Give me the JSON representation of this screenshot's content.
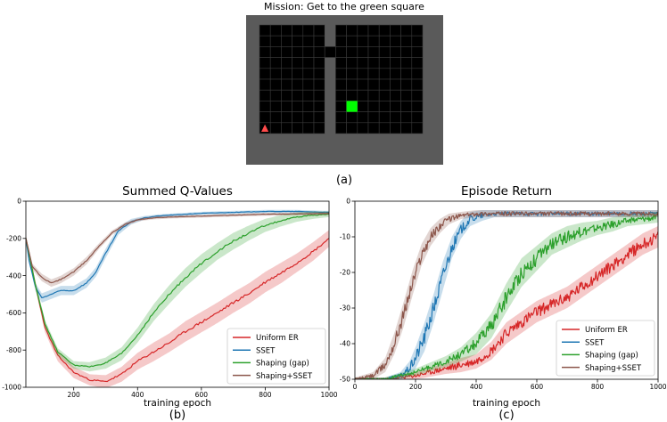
{
  "colors": {
    "uniform_er": "#d62728",
    "sset": "#1f77b4",
    "shaping_gap": "#2ca02c",
    "shaping_sset": "#8c564b",
    "env_border": "#5a5a5a",
    "env_grid_line": "#3a3a3a",
    "env_cell": "#000000",
    "goal": "#00ff00",
    "agent": "#ff4b4b"
  },
  "panel_a": {
    "title": "Mission: Get to the green square",
    "label": "(a)",
    "grid": {
      "cols": 15,
      "rows": 10,
      "wall_column": 6,
      "door_row": 2,
      "goal": {
        "col": 8,
        "row": 7
      },
      "agent": {
        "col": 0,
        "row": 9,
        "facing": "up"
      }
    }
  },
  "chart_data": [
    {
      "type": "line",
      "title": "Summed Q-Values",
      "xlabel": "training epoch",
      "ylabel": "",
      "panel_label": "(b)",
      "xlim": [
        50,
        1000
      ],
      "ylim": [
        -1000,
        0
      ],
      "xticks": [
        200,
        400,
        600,
        800,
        1000
      ],
      "yticks": [
        0,
        -200,
        -400,
        -600,
        -800,
        -1000
      ],
      "legend": "lower-right",
      "grid": false,
      "series": [
        {
          "name": "Uniform ER",
          "color_key": "uniform_er",
          "x": [
            50,
            80,
            110,
            150,
            200,
            250,
            300,
            350,
            400,
            450,
            500,
            550,
            600,
            650,
            700,
            750,
            800,
            850,
            900,
            950,
            1000
          ],
          "y": [
            -200,
            -450,
            -680,
            -830,
            -920,
            -960,
            -970,
            -930,
            -860,
            -810,
            -760,
            -700,
            -650,
            -600,
            -545,
            -495,
            -435,
            -385,
            -330,
            -270,
            -200
          ],
          "band": [
            20,
            20,
            25,
            30,
            30,
            30,
            35,
            40,
            45,
            50,
            50,
            55,
            55,
            55,
            55,
            55,
            55,
            55,
            50,
            50,
            45
          ]
        },
        {
          "name": "SSET",
          "color_key": "sset",
          "x": [
            50,
            60,
            80,
            100,
            130,
            160,
            200,
            240,
            270,
            300,
            340,
            380,
            420,
            460,
            500,
            600,
            700,
            800,
            900,
            1000
          ],
          "y": [
            -200,
            -320,
            -460,
            -520,
            -500,
            -480,
            -480,
            -440,
            -380,
            -280,
            -160,
            -110,
            -90,
            -80,
            -75,
            -65,
            -60,
            -55,
            -55,
            -60
          ],
          "band": [
            10,
            10,
            20,
            25,
            25,
            25,
            25,
            25,
            25,
            25,
            20,
            15,
            10,
            8,
            8,
            8,
            8,
            8,
            8,
            8
          ]
        },
        {
          "name": "Shaping (gap)",
          "color_key": "shaping_gap",
          "x": [
            50,
            80,
            110,
            150,
            200,
            250,
            300,
            350,
            400,
            450,
            500,
            550,
            600,
            650,
            700,
            750,
            800,
            850,
            900,
            950,
            1000
          ],
          "y": [
            -200,
            -450,
            -660,
            -810,
            -880,
            -890,
            -870,
            -820,
            -720,
            -600,
            -500,
            -410,
            -335,
            -270,
            -215,
            -170,
            -130,
            -105,
            -85,
            -75,
            -70
          ],
          "band": [
            15,
            20,
            20,
            20,
            20,
            25,
            30,
            35,
            40,
            45,
            50,
            50,
            50,
            45,
            45,
            40,
            35,
            30,
            25,
            20,
            15
          ]
        },
        {
          "name": "Shaping+SSET",
          "color_key": "shaping_sset",
          "x": [
            50,
            70,
            100,
            130,
            160,
            200,
            240,
            280,
            320,
            360,
            400,
            450,
            500,
            600,
            700,
            800,
            900,
            1000
          ],
          "y": [
            -200,
            -350,
            -410,
            -440,
            -420,
            -380,
            -320,
            -240,
            -170,
            -125,
            -100,
            -90,
            -85,
            -80,
            -75,
            -70,
            -68,
            -66
          ],
          "band": [
            10,
            15,
            20,
            20,
            20,
            20,
            20,
            15,
            12,
            10,
            8,
            8,
            8,
            8,
            8,
            8,
            8,
            8
          ]
        }
      ]
    },
    {
      "type": "line",
      "title": "Episode Return",
      "xlabel": "training epoch",
      "ylabel": "",
      "panel_label": "(c)",
      "xlim": [
        0,
        1000
      ],
      "ylim": [
        -50,
        0
      ],
      "xticks": [
        0,
        200,
        400,
        600,
        800,
        1000
      ],
      "yticks": [
        0,
        -10,
        -20,
        -30,
        -40,
        -50
      ],
      "legend": "lower-right",
      "grid": false,
      "series": [
        {
          "name": "Uniform ER",
          "color_key": "uniform_er",
          "x": [
            0,
            100,
            200,
            300,
            350,
            400,
            450,
            500,
            550,
            600,
            650,
            700,
            750,
            800,
            850,
            900,
            950,
            1000
          ],
          "y": [
            -50,
            -50,
            -49,
            -47,
            -46,
            -45,
            -42,
            -37,
            -34,
            -31,
            -29,
            -27,
            -24,
            -21,
            -18,
            -15,
            -12,
            -10
          ],
          "band": [
            0.5,
            0.5,
            1,
            1.5,
            2,
            2,
            2.5,
            3,
            3,
            3,
            3,
            3,
            3,
            3,
            3,
            3,
            3,
            3
          ]
        },
        {
          "name": "SSET",
          "color_key": "sset",
          "x": [
            0,
            100,
            150,
            180,
            200,
            230,
            260,
            290,
            320,
            350,
            380,
            420,
            460,
            500,
            600,
            700,
            800,
            900,
            1000
          ],
          "y": [
            -50,
            -50,
            -49,
            -47,
            -44,
            -38,
            -30,
            -21,
            -13,
            -8,
            -5,
            -4,
            -3.5,
            -3.5,
            -3.5,
            -3.5,
            -3.5,
            -3.5,
            -3.5
          ],
          "band": [
            0.5,
            0.5,
            1,
            2,
            3,
            4,
            4,
            4,
            3,
            2.5,
            2,
            1.5,
            1,
            1,
            1,
            1,
            1,
            1,
            1
          ]
        },
        {
          "name": "Shaping (gap)",
          "color_key": "shaping_gap",
          "x": [
            0,
            100,
            200,
            300,
            350,
            400,
            450,
            500,
            550,
            600,
            650,
            700,
            750,
            800,
            850,
            900,
            950,
            1000
          ],
          "y": [
            -50,
            -50,
            -48,
            -45,
            -43,
            -40,
            -35,
            -27,
            -20,
            -16,
            -12,
            -10,
            -8.5,
            -7.5,
            -6.5,
            -5.5,
            -5,
            -4.5
          ],
          "band": [
            0.5,
            0.5,
            1,
            1.5,
            2,
            3,
            3.5,
            4,
            4,
            3.5,
            3,
            3,
            2.5,
            2,
            2,
            1.5,
            1.5,
            1.5
          ]
        },
        {
          "name": "Shaping+SSET",
          "color_key": "shaping_sset",
          "x": [
            0,
            60,
            100,
            130,
            160,
            190,
            220,
            250,
            280,
            310,
            350,
            400,
            450,
            500,
            600,
            700,
            800,
            900,
            1000
          ],
          "y": [
            -50,
            -49,
            -46,
            -40,
            -32,
            -23,
            -15,
            -10,
            -7,
            -5,
            -4,
            -3.5,
            -3.5,
            -3.5,
            -3.5,
            -3.5,
            -3.5,
            -3.5,
            -3.5
          ],
          "band": [
            0.5,
            1,
            2,
            3,
            3.5,
            3.5,
            3,
            2.5,
            2,
            1.5,
            1,
            1,
            1,
            1,
            1,
            1,
            1,
            1,
            1
          ]
        }
      ]
    }
  ]
}
